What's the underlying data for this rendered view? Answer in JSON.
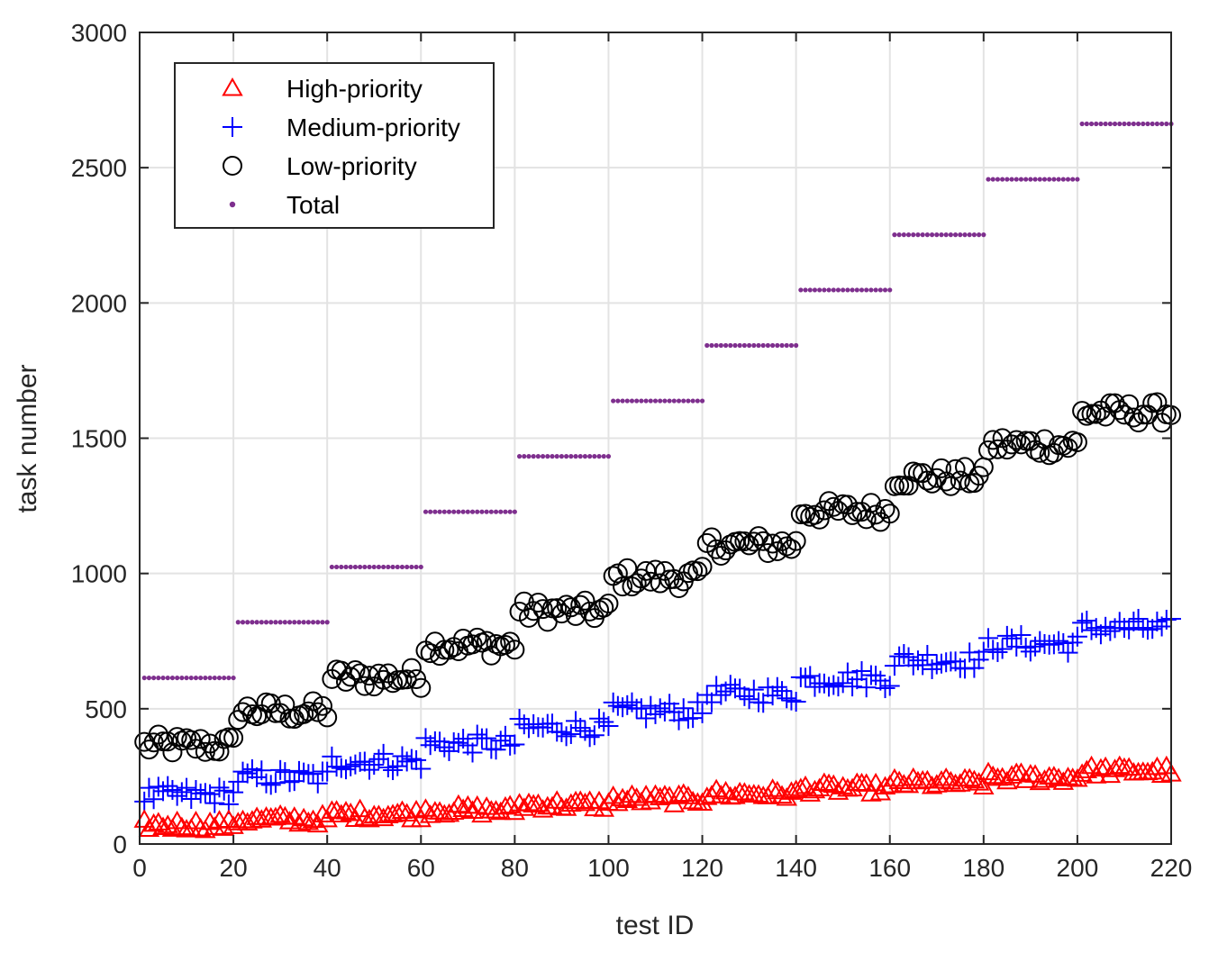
{
  "chart_data": {
    "type": "scatter",
    "title": "",
    "xlabel": "test ID",
    "ylabel": "task number",
    "xlim": [
      0,
      220
    ],
    "ylim": [
      0,
      3000
    ],
    "xticks": [
      0,
      20,
      40,
      60,
      80,
      100,
      120,
      140,
      160,
      180,
      200,
      220
    ],
    "yticks": [
      0,
      500,
      1000,
      1500,
      2000,
      2500,
      3000
    ],
    "xtick_labels": [
      "0",
      "20",
      "40",
      "60",
      "80",
      "100",
      "120",
      "140",
      "160",
      "180",
      "200",
      "220"
    ],
    "ytick_labels": [
      "0",
      "500",
      "1000",
      "1500",
      "2000",
      "2500",
      "3000"
    ],
    "grid": true,
    "legend_position": "top-left",
    "x": {
      "start": 1,
      "end": 220,
      "step": 1
    },
    "total_by_group": [
      614,
      820,
      1024,
      1228,
      1433,
      1638,
      1843,
      2048,
      2252,
      2457,
      2662
    ],
    "series": [
      {
        "name": "High-priority",
        "marker": "triangle",
        "color": "#ff0000",
        "group_means": [
          70,
          90,
          110,
          125,
          145,
          165,
          185,
          205,
          225,
          245,
          270
        ],
        "jitter": 20
      },
      {
        "name": "Medium-priority",
        "marker": "plus",
        "color": "#0000ff",
        "group_means": [
          180,
          245,
          305,
          370,
          430,
          490,
          555,
          610,
          680,
          740,
          800
        ],
        "jitter": 35
      },
      {
        "name": "Low-priority",
        "marker": "circle",
        "color": "#000000",
        "group_means": [
          365,
          490,
          615,
          735,
          860,
          985,
          1105,
          1230,
          1355,
          1475,
          1595
        ],
        "jitter": 40
      },
      {
        "name": "Total",
        "marker": "dot",
        "color": "#7e2f8e"
      }
    ]
  }
}
